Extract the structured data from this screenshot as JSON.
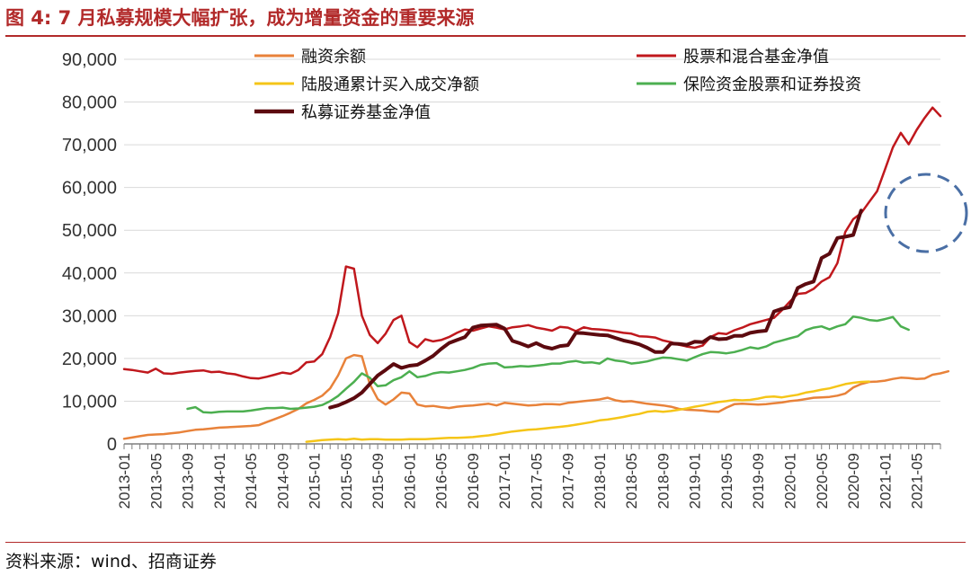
{
  "title": "图 4:  7 月私募规模大幅扩张，成为增量资金的重要来源",
  "source": "资料来源：wind、招商证券",
  "chart_data": {
    "type": "line",
    "ylim": [
      0,
      90000
    ],
    "yticks": [
      "0",
      "10,000",
      "20,000",
      "30,000",
      "40,000",
      "50,000",
      "60,000",
      "70,000",
      "80,000",
      "90,000"
    ],
    "xticks": [
      "2013-01",
      "2013-05",
      "2013-09",
      "2014-01",
      "2014-05",
      "2014-09",
      "2015-01",
      "2015-05",
      "2015-09",
      "2016-01",
      "2016-05",
      "2016-09",
      "2017-01",
      "2017-05",
      "2017-09",
      "2018-01",
      "2018-05",
      "2018-09",
      "2019-01",
      "2019-05",
      "2019-09",
      "2020-01",
      "2020-05",
      "2020-09",
      "2021-01",
      "2021-05"
    ],
    "x_start": "2013-01",
    "x_end": "2021-08",
    "series": [
      {
        "name": "融资余额",
        "color": "#e8823a",
        "width": 2.5,
        "start": 0,
        "values": [
          1200,
          1500,
          1800,
          2100,
          2200,
          2300,
          2500,
          2700,
          3000,
          3300,
          3400,
          3600,
          3800,
          3900,
          4000,
          4100,
          4200,
          4400,
          5100,
          5800,
          6500,
          7300,
          8200,
          9500,
          10300,
          11300,
          13000,
          16000,
          20000,
          20800,
          20500,
          14000,
          10500,
          9200,
          10400,
          12000,
          11800,
          9200,
          8800,
          8900,
          8600,
          8400,
          8700,
          8900,
          9000,
          9200,
          9400,
          9000,
          9600,
          9400,
          9200,
          9000,
          9100,
          9300,
          9300,
          9200,
          9600,
          9800,
          10000,
          10200,
          10400,
          10800,
          10200,
          9900,
          10000,
          9700,
          9400,
          9200,
          9000,
          8700,
          8200,
          8000,
          7900,
          7800,
          7600,
          7500,
          8500,
          9300,
          9400,
          9300,
          9200,
          9300,
          9500,
          9700,
          10000,
          10200,
          10500,
          10800,
          10900,
          11000,
          11300,
          11800,
          13200,
          14000,
          14500,
          14600,
          14800,
          15200,
          15500,
          15400,
          15200,
          15300,
          16200,
          16500,
          17000
        ]
      },
      {
        "name": "股票和混合基金净值",
        "color": "#c0181d",
        "width": 2.5,
        "start": 0,
        "values": [
          17500,
          17300,
          17000,
          16700,
          17600,
          16500,
          16400,
          16700,
          16900,
          17100,
          17200,
          16800,
          16900,
          16500,
          16300,
          15800,
          15400,
          15300,
          15700,
          16200,
          16700,
          16400,
          17300,
          19100,
          19300,
          21000,
          25000,
          30500,
          41500,
          41000,
          30000,
          25500,
          23600,
          25800,
          29000,
          30000,
          23800,
          22600,
          24500,
          24000,
          24300,
          25000,
          26000,
          26800,
          26500,
          27000,
          27500,
          27200,
          26800,
          27300,
          27500,
          27800,
          27200,
          26900,
          26500,
          27400,
          27200,
          26400,
          27300,
          26900,
          26800,
          26600,
          26300,
          26000,
          25800,
          25200,
          25100,
          24900,
          24200,
          23800,
          23200,
          22800,
          22500,
          23000,
          25000,
          25900,
          25700,
          26600,
          27200,
          28000,
          28500,
          29000,
          29500,
          31300,
          33300,
          35100,
          35300,
          36300,
          38000,
          39000,
          42300,
          49600,
          52600,
          54000,
          56600,
          59100,
          64200,
          69400,
          72800,
          70100,
          73500,
          76300,
          78700,
          76700
        ]
      },
      {
        "name": "陆股通累计买入成交净额",
        "color": "#f5c518",
        "width": 2.5,
        "start": 23,
        "values": [
          500,
          700,
          900,
          1000,
          1100,
          1000,
          1200,
          1000,
          1100,
          1100,
          1000,
          1000,
          1000,
          1100,
          1100,
          1100,
          1200,
          1300,
          1400,
          1400,
          1500,
          1600,
          1800,
          2000,
          2300,
          2600,
          2900,
          3100,
          3300,
          3400,
          3600,
          3800,
          4000,
          4200,
          4500,
          4800,
          5100,
          5500,
          5700,
          6000,
          6300,
          6700,
          7000,
          7500,
          7700,
          7500,
          7700,
          8000,
          8300,
          8700,
          9000,
          9400,
          9800,
          10000,
          10300,
          10200,
          10300,
          10600,
          11000,
          11100,
          10900,
          11200,
          11500,
          12000,
          12300,
          12700,
          13000,
          13500,
          14000,
          14300,
          14500,
          14600
        ]
      },
      {
        "name": "保险资金股票和证券投资",
        "color": "#4caf50",
        "width": 2.5,
        "start": 8,
        "values": [
          8200,
          8600,
          7400,
          7300,
          7500,
          7600,
          7600,
          7600,
          7800,
          8100,
          8400,
          8400,
          8500,
          8200,
          8300,
          8500,
          8700,
          9100,
          10000,
          11200,
          12900,
          14500,
          16500,
          15500,
          13500,
          13700,
          14900,
          15600,
          17000,
          15600,
          15900,
          16500,
          16800,
          16700,
          17000,
          17300,
          17800,
          18500,
          18800,
          18900,
          17900,
          18000,
          18200,
          18100,
          18300,
          18500,
          18800,
          18800,
          19200,
          19400,
          19000,
          19100,
          18800,
          20000,
          19500,
          19300,
          18800,
          19000,
          19300,
          19800,
          20200,
          20100,
          19800,
          19500,
          20300,
          21000,
          21500,
          21400,
          21200,
          21500,
          22000,
          22600,
          22300,
          22800,
          23700,
          24200,
          24700,
          25200,
          26600,
          27200,
          27500,
          26800,
          27500,
          28000,
          29800,
          29500,
          29000,
          28800,
          29200,
          29700,
          27500,
          26700
        ]
      },
      {
        "name": "私募证券基金净值",
        "color": "#5c0a0f",
        "width": 4,
        "start": 26,
        "values": [
          8500,
          9000,
          9800,
          10700,
          12000,
          14000,
          16000,
          17300,
          18700,
          17800,
          18300,
          18500,
          19500,
          20600,
          22200,
          23600,
          24300,
          25000,
          27200,
          27700,
          27800,
          27900,
          27000,
          24100,
          23500,
          22800,
          23600,
          22700,
          22300,
          22900,
          23100,
          26000,
          25900,
          25700,
          25500,
          25400,
          24800,
          24200,
          23800,
          23300,
          22500,
          21500,
          21500,
          23500,
          23400,
          23200,
          23900,
          23800,
          25000,
          24500,
          24600,
          25300,
          25300,
          26000,
          26300,
          26500,
          31000,
          31600,
          32000,
          36500,
          37400,
          38000,
          43500,
          44500,
          48200,
          48500,
          48900,
          54600
        ]
      }
    ]
  }
}
